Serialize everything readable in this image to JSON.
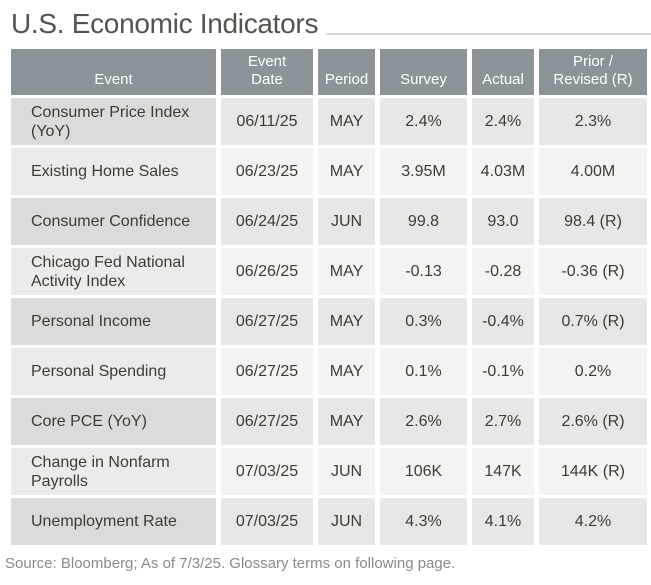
{
  "title": "U.S. Economic Indicators",
  "table": {
    "columns": [
      {
        "key": "event",
        "label": "Event"
      },
      {
        "key": "date",
        "label": "Event\nDate"
      },
      {
        "key": "period",
        "label": "Period"
      },
      {
        "key": "survey",
        "label": "Survey"
      },
      {
        "key": "actual",
        "label": "Actual"
      },
      {
        "key": "prior",
        "label": "Prior /\nRevised (R)"
      }
    ],
    "rows": [
      {
        "event": "Consumer Price Index (YoY)",
        "date": "06/11/25",
        "period": "MAY",
        "survey": "2.4%",
        "actual": "2.4%",
        "prior": "2.3%"
      },
      {
        "event": "Existing Home Sales",
        "date": "06/23/25",
        "period": "MAY",
        "survey": "3.95M",
        "actual": "4.03M",
        "prior": "4.00M"
      },
      {
        "event": "Consumer Confidence",
        "date": "06/24/25",
        "period": "JUN",
        "survey": "99.8",
        "actual": "93.0",
        "prior": "98.4 (R)"
      },
      {
        "event": "Chicago Fed National Activity Index",
        "date": "06/26/25",
        "period": "MAY",
        "survey": "-0.13",
        "actual": "-0.28",
        "prior": "-0.36 (R)"
      },
      {
        "event": "Personal Income",
        "date": "06/27/25",
        "period": "MAY",
        "survey": "0.3%",
        "actual": "-0.4%",
        "prior": "0.7% (R)"
      },
      {
        "event": "Personal Spending",
        "date": "06/27/25",
        "period": "MAY",
        "survey": "0.1%",
        "actual": "-0.1%",
        "prior": "0.2%"
      },
      {
        "event": "Core PCE (YoY)",
        "date": "06/27/25",
        "period": "MAY",
        "survey": "2.6%",
        "actual": "2.7%",
        "prior": "2.6% (R)"
      },
      {
        "event": "Change in Nonfarm Payrolls",
        "date": "07/03/25",
        "period": "JUN",
        "survey": "106K",
        "actual": "147K",
        "prior": "144K (R)"
      },
      {
        "event": "Unemployment Rate",
        "date": "07/03/25",
        "period": "JUN",
        "survey": "4.3%",
        "actual": "4.1%",
        "prior": "4.2%"
      }
    ]
  },
  "footer": {
    "source_note": "Source: Bloomberg; As of 7/3/25. Glossary terms on following page."
  },
  "colors": {
    "header_bg": "#8b9499",
    "header_text": "#ffffff",
    "title_text": "#56534e",
    "cell_text": "#3e3c39",
    "footer_text": "#8b8a88",
    "row_odd_event_bg": "#dbdbd9",
    "row_odd_data_bg": "#e8e7e5",
    "row_even_event_bg": "#ecebe9",
    "row_even_data_bg": "#f4f3f1"
  }
}
